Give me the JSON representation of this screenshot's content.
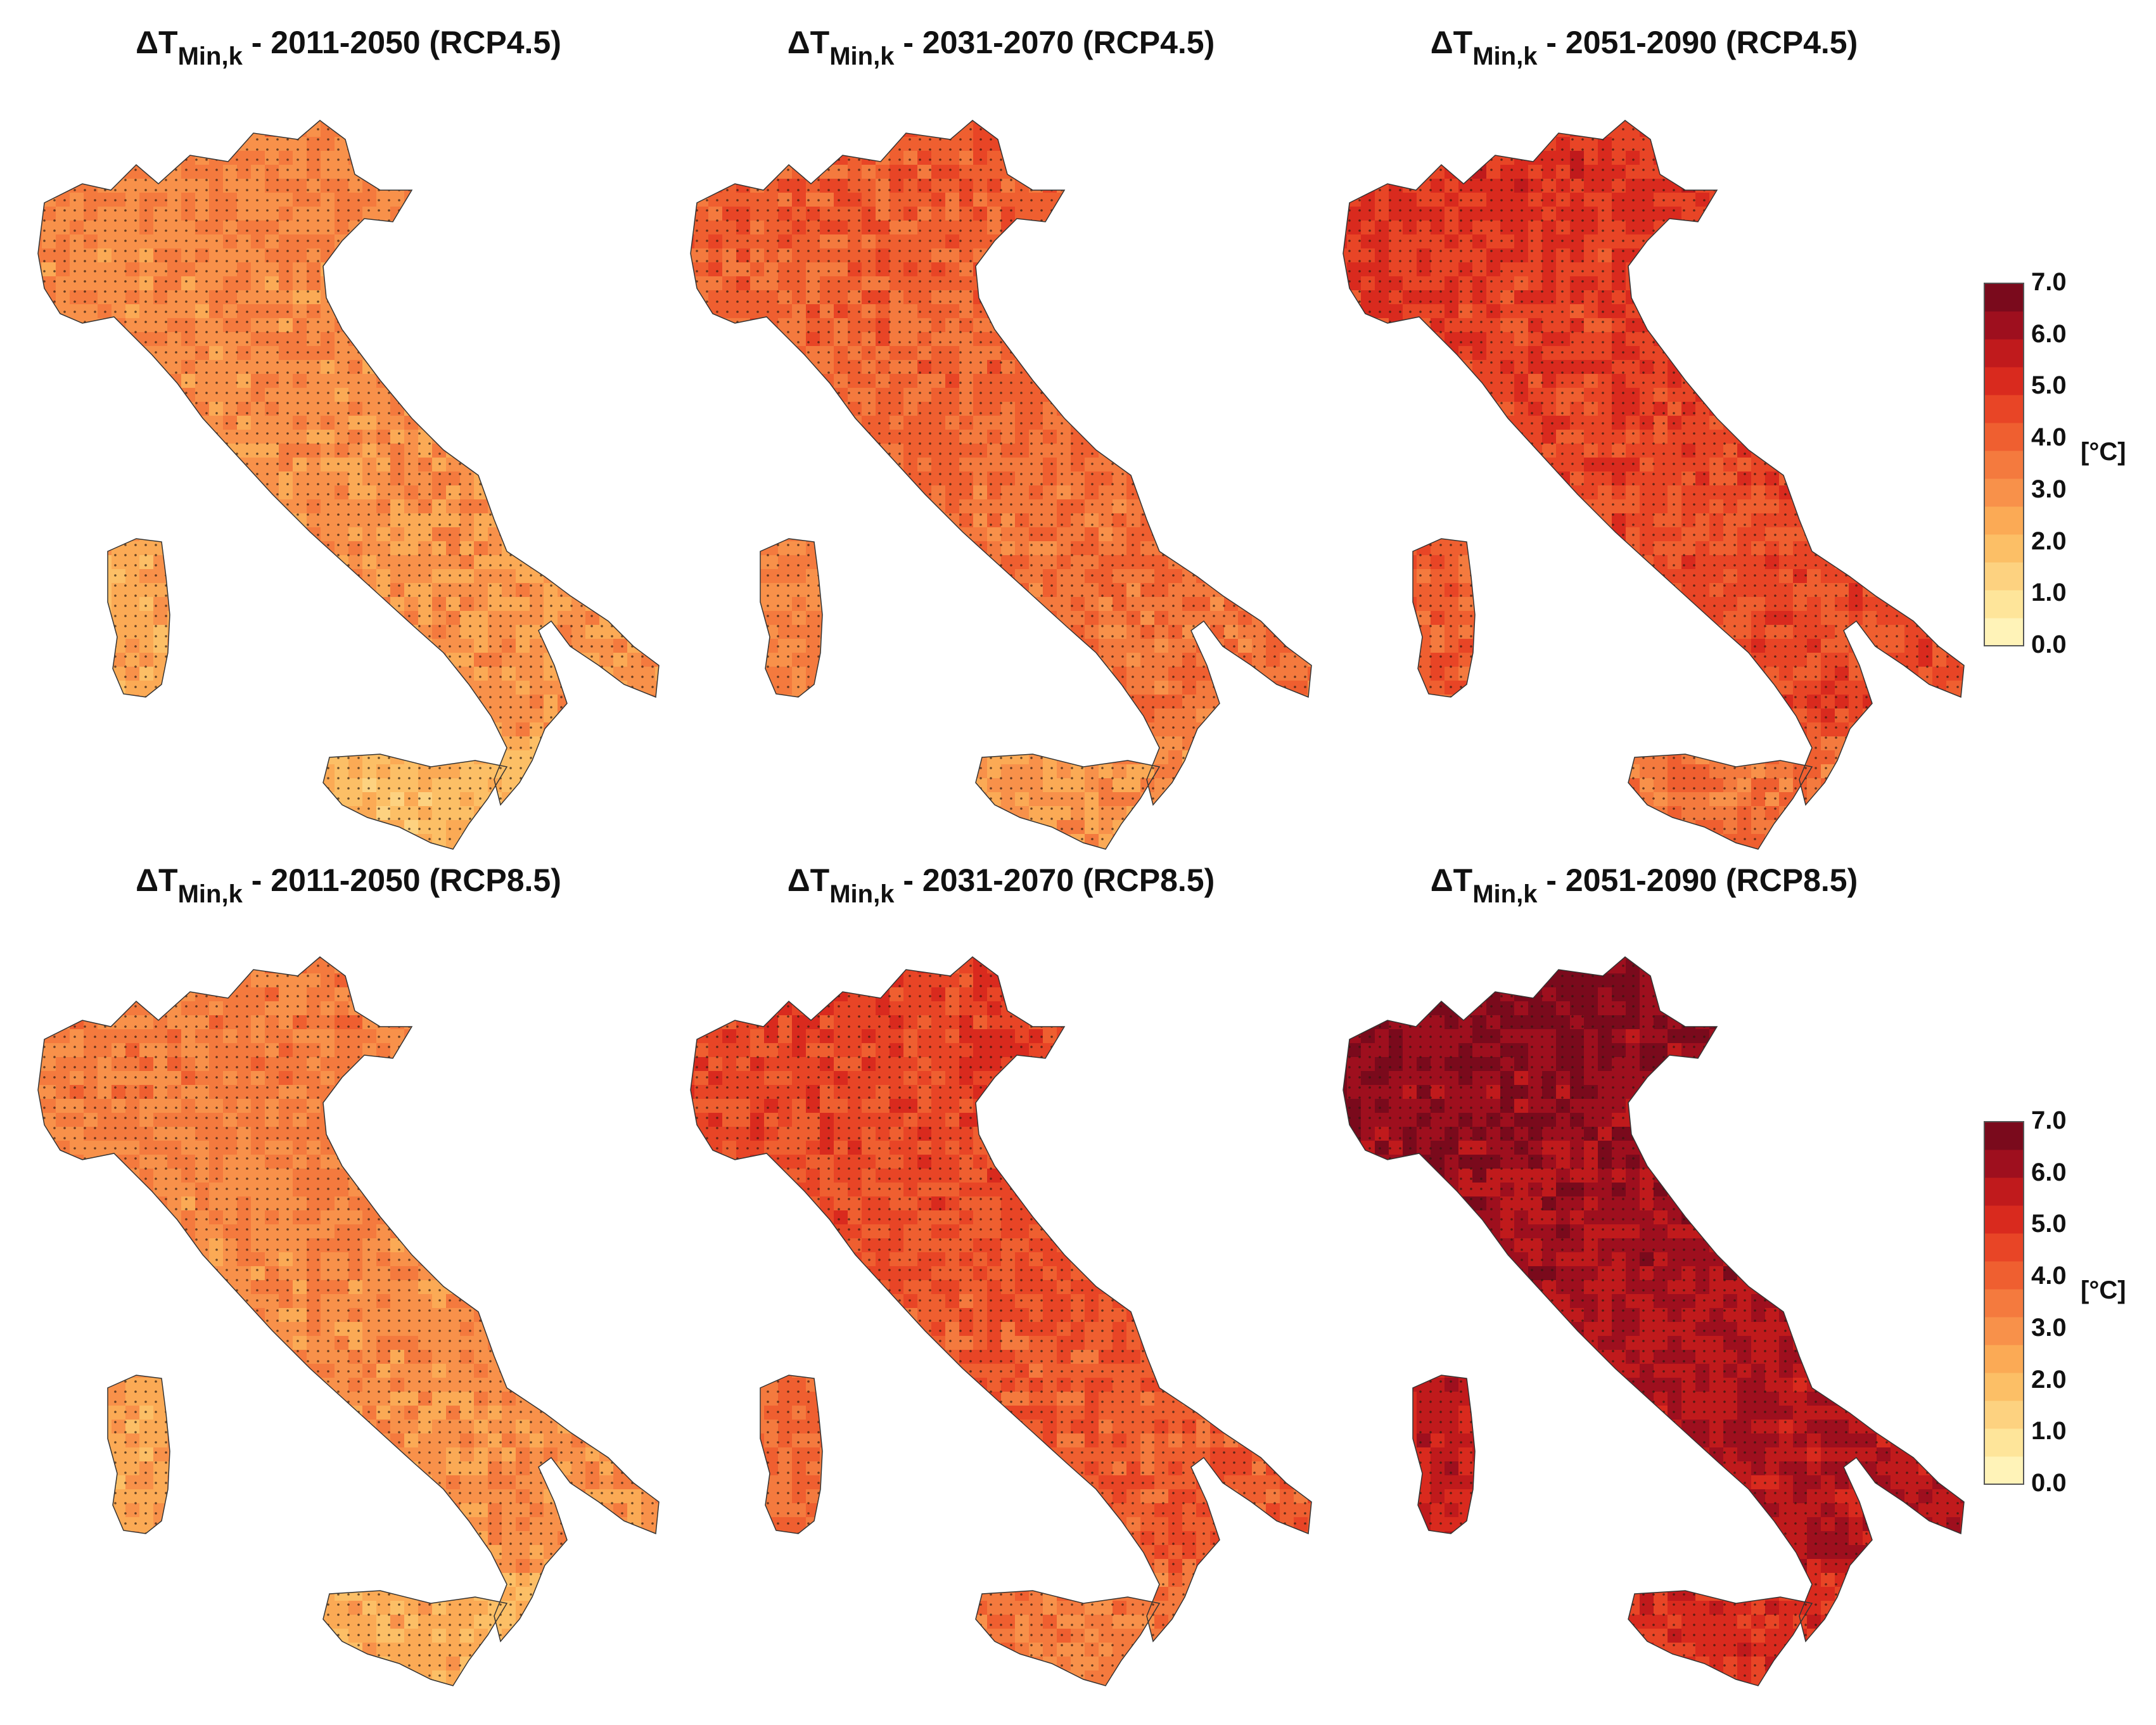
{
  "panels": [
    {
      "delta": "ΔT",
      "sub": "Min,k",
      "rest": " - 2011-2050 (RCP4.5)",
      "level": 0.4
    },
    {
      "delta": "ΔT",
      "sub": "Min,k",
      "rest": " - 2031-2070 (RCP4.5)",
      "level": 0.52
    },
    {
      "delta": "ΔT",
      "sub": "Min,k",
      "rest": " - 2051-2090 (RCP4.5)",
      "level": 0.64
    },
    {
      "delta": "ΔT",
      "sub": "Min,k",
      "rest": " - 2011-2050 (RCP8.5)",
      "level": 0.42
    },
    {
      "delta": "ΔT",
      "sub": "Min,k",
      "rest": " - 2031-2070 (RCP8.5)",
      "level": 0.6
    },
    {
      "delta": "ΔT",
      "sub": "Min,k",
      "rest": " - 2051-2090 (RCP8.5)",
      "level": 0.86
    }
  ],
  "colorbar": {
    "ticks": [
      "7.0",
      "6.0",
      "5.0",
      "4.0",
      "3.0",
      "2.0",
      "1.0",
      "0.0"
    ],
    "unit": "[°C]",
    "colors": [
      "#fff3b8",
      "#fee59a",
      "#fdd280",
      "#fcbf66",
      "#fbaa55",
      "#f8914a",
      "#f47a3e",
      "#ef5f30",
      "#e84526",
      "#d92a1e",
      "#c01a1c",
      "#9e0f1e",
      "#7a0a1c"
    ]
  }
}
